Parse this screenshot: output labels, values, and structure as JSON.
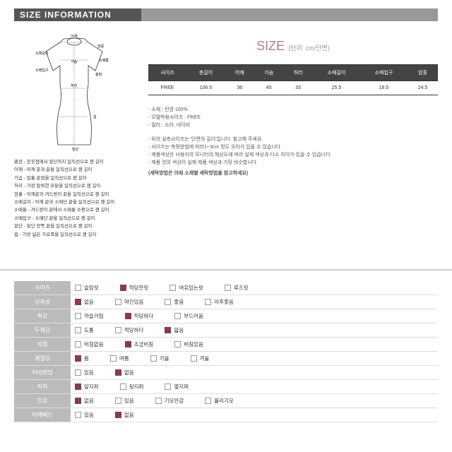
{
  "header": "SIZE INFORMATION",
  "size_title": "SIZE",
  "size_unit": "(단위: cm/단면)",
  "diagram_labels": {
    "shoulder": "어깨",
    "armhole": "암홀",
    "sleeve_len": "소매길이",
    "sleeve_w": "소매통",
    "sleeve_open": "소매입구",
    "chest": "가슴",
    "total_len": "총장",
    "waist": "허리",
    "hip": "힙",
    "hem": "밑단"
  },
  "measure_desc": [
    "총장 - 옷옷점에서 밑단까지 일직선으로 잰 길이",
    "어깨 - 어깨 끝과 끝을 일직선으로 잰 길이",
    "가슴 - 암홀 끝점을 일직선으로 잰 길이",
    "허리 - 가장 잘록한 부분을 일직선으로 잰 길이",
    "암홀 - 어깨끝과 겨드랑이 끝을 일직선으로 잰 길이",
    "소매길이 - 어깨 끝과 소매단 끝을 일직선으로 잰 길이",
    "소매통 - 겨드랑이 끝에서 소매통 수평으로 잰 길이",
    "소매입구 - 소매단 끝을 일직선으로 잰 길이",
    "밑단 - 밑단 양쪽 끝을 일직선으로 잰 길이",
    "힙 - 가장 넓은 가로폭을 일직선으로 잰 길이"
  ],
  "size_table": {
    "headers": [
      "사이즈",
      "총길이",
      "어깨",
      "가슴",
      "허리",
      "소매길이",
      "소매입구",
      "암홀"
    ],
    "rows": [
      [
        "FREE",
        "106.5",
        "36",
        "45",
        "33",
        "25.5",
        "18.5",
        "24.5"
      ]
    ]
  },
  "notes_main": [
    "- 소재 : 린넨 100%",
    "- 모델착용사이즈 : FREE",
    "- 컬러 : 소라, 네이비"
  ],
  "notes_sub": [
    "- 위의 실측사이즈는 '단면의 길이'입니다. 참고해 주세요",
    "- 사이즈는 측정방법에 따라1~3cm 정도 오차가 있을 수 있습니다",
    "- 제품색상은 사용자의 모니터의 해상도에 따라 실제 색상과 다소 차이가 있을 수 있습니다.",
    "- 제품 컷의 색상이 실제 제품 색상과 가장 비슷합니다."
  ],
  "notes_final": "(세탁방법은 아래 소재별 세탁방법을 참고하세요)",
  "attr_rows": [
    {
      "label": "사이즈",
      "opts": [
        "슬림핏",
        "적당한핏",
        "여유있는핏",
        "루즈핏"
      ],
      "sel": 1
    },
    {
      "label": "신축성",
      "opts": [
        "없음",
        "약간있음",
        "좋음",
        "아주좋음"
      ],
      "sel": 0
    },
    {
      "label": "촉감",
      "opts": [
        "까슬거림",
        "적당하다",
        "부드러움",
        ""
      ],
      "sel": 1
    },
    {
      "label": "두께감",
      "opts": [
        "도톰",
        "적당하다",
        "얇음",
        ""
      ],
      "sel": 2
    },
    {
      "label": "비침",
      "opts": [
        "비침없음",
        "조금비침",
        "비침있음",
        ""
      ],
      "sel": 1
    },
    {
      "label": "계절감",
      "opts": [
        "봄",
        "여름",
        "가을",
        "겨울"
      ],
      "sel": 0
    },
    {
      "label": "허리밴딩",
      "opts": [
        "있음",
        "없음",
        "",
        ""
      ],
      "sel": 1
    },
    {
      "label": "지퍼",
      "opts": [
        "앞지퍼",
        "뒷지퍼",
        "옆지퍼",
        ""
      ],
      "sel": 0
    },
    {
      "label": "안감",
      "opts": [
        "없음",
        "있음",
        "기모안감",
        "플리기모"
      ],
      "sel": 0
    },
    {
      "label": "어깨패드",
      "opts": [
        "있음",
        "없음",
        "",
        ""
      ],
      "sel": 1
    }
  ],
  "colors": {
    "accent": "#8a3a4a",
    "header_dark": "#555",
    "header_light": "#999"
  }
}
